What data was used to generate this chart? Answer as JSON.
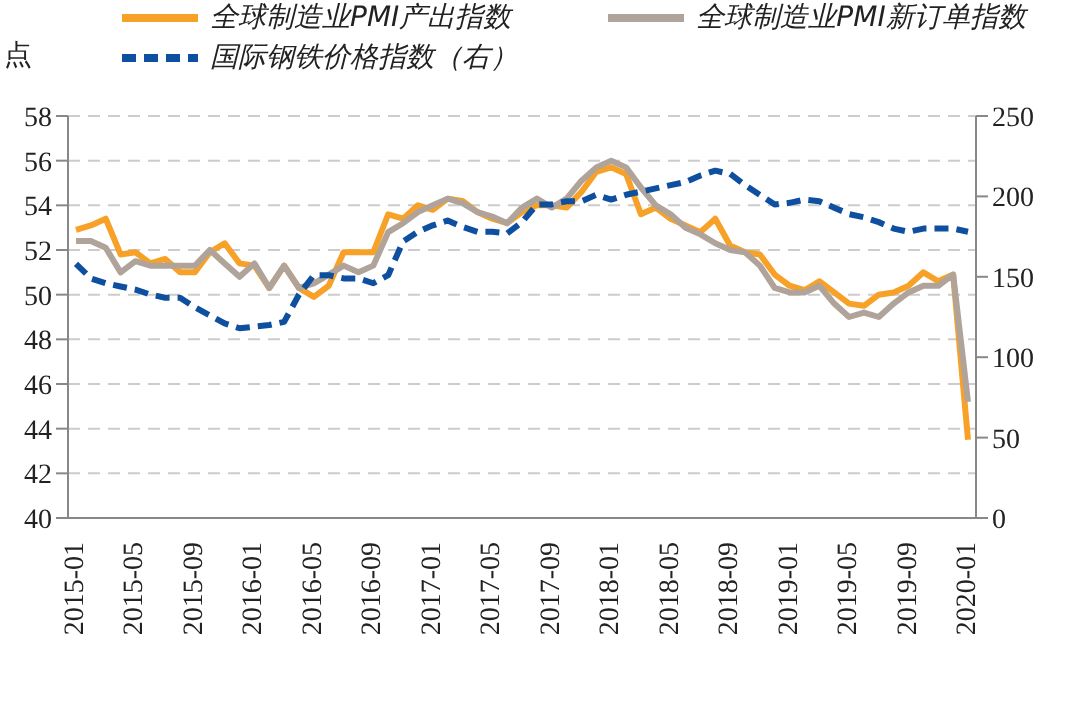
{
  "chart_data": {
    "type": "line",
    "ylabel": "点",
    "categories": [
      "2015-01",
      null,
      null,
      null,
      "2015-05",
      null,
      null,
      null,
      "2015-09",
      null,
      null,
      null,
      "2016-01",
      null,
      null,
      null,
      "2016-05",
      null,
      null,
      null,
      "2016-09",
      null,
      null,
      null,
      "2017-01",
      null,
      null,
      null,
      "2017-05",
      null,
      null,
      null,
      "2017-09",
      null,
      null,
      null,
      "2018-01",
      null,
      null,
      null,
      "2018-05",
      null,
      null,
      null,
      "2018-09",
      null,
      null,
      null,
      "2019-01",
      null,
      null,
      null,
      "2019-05",
      null,
      null,
      null,
      "2019-09",
      null,
      null,
      null,
      "2020-01"
    ],
    "series": [
      {
        "name": "全球制造业PMI产出指数",
        "color": "#f7a128",
        "line_style": "solid",
        "values": [
          52.9,
          53.1,
          53.4,
          51.8,
          51.9,
          51.4,
          51.6,
          51.0,
          51.0,
          51.9,
          52.3,
          51.4,
          51.3,
          50.3,
          51.3,
          50.3,
          49.9,
          50.4,
          51.9,
          51.9,
          51.9,
          53.6,
          53.4,
          54.0,
          53.8,
          54.3,
          54.2,
          53.7,
          53.4,
          53.2,
          53.7,
          54.0,
          54.0,
          53.9,
          54.6,
          55.5,
          55.7,
          55.4,
          53.6,
          53.9,
          53.4,
          53.1,
          52.8,
          53.4,
          52.2,
          51.9,
          51.8,
          50.9,
          50.4,
          50.2,
          50.6,
          50.1,
          49.6,
          49.5,
          50.0,
          50.1,
          50.4,
          51.0,
          50.6,
          50.9,
          43.5
        ]
      },
      {
        "name": "全球制造业PMI新订单指数",
        "color": "#b0a49a",
        "line_style": "solid",
        "values": [
          52.4,
          52.4,
          52.1,
          51.0,
          51.5,
          51.3,
          51.3,
          51.3,
          51.3,
          52.0,
          51.4,
          50.8,
          51.4,
          50.3,
          51.3,
          50.3,
          50.5,
          50.9,
          51.3,
          51.0,
          51.3,
          52.8,
          53.2,
          53.7,
          54.0,
          54.3,
          54.1,
          53.7,
          53.5,
          53.2,
          53.9,
          54.3,
          53.9,
          54.3,
          55.1,
          55.7,
          56.0,
          55.7,
          54.8,
          54.0,
          53.6,
          53.0,
          52.7,
          52.3,
          52.0,
          51.9,
          51.3,
          50.3,
          50.1,
          50.1,
          50.4,
          49.6,
          49.0,
          49.2,
          49.0,
          49.6,
          50.1,
          50.4,
          50.4,
          50.9,
          45.2
        ]
      },
      {
        "name": "国际钢铁价格指数（右）",
        "color": "#0f4fa0",
        "line_style": "dashed",
        "axis": "y2",
        "values": [
          158,
          149,
          146,
          144,
          142,
          139,
          137,
          137,
          131,
          126,
          121,
          118,
          119,
          120,
          122,
          139,
          151,
          151,
          149,
          149,
          146,
          151,
          172,
          178,
          182,
          185,
          181,
          178,
          178,
          177,
          184,
          195,
          195,
          197,
          197,
          201,
          198,
          201,
          203,
          205,
          207,
          209,
          213,
          216,
          214,
          207,
          201,
          195,
          196,
          198,
          197,
          193,
          189,
          187,
          184,
          180,
          178,
          180,
          180,
          180,
          178
        ]
      }
    ],
    "ylim": [
      40,
      58
    ],
    "yticks": [
      40,
      42,
      44,
      46,
      48,
      50,
      52,
      54,
      56,
      58
    ],
    "y2lim": [
      0,
      250
    ],
    "y2ticks": [
      0,
      50,
      100,
      150,
      200,
      250
    ],
    "grid": "y",
    "legend": "top",
    "marker": "none"
  }
}
